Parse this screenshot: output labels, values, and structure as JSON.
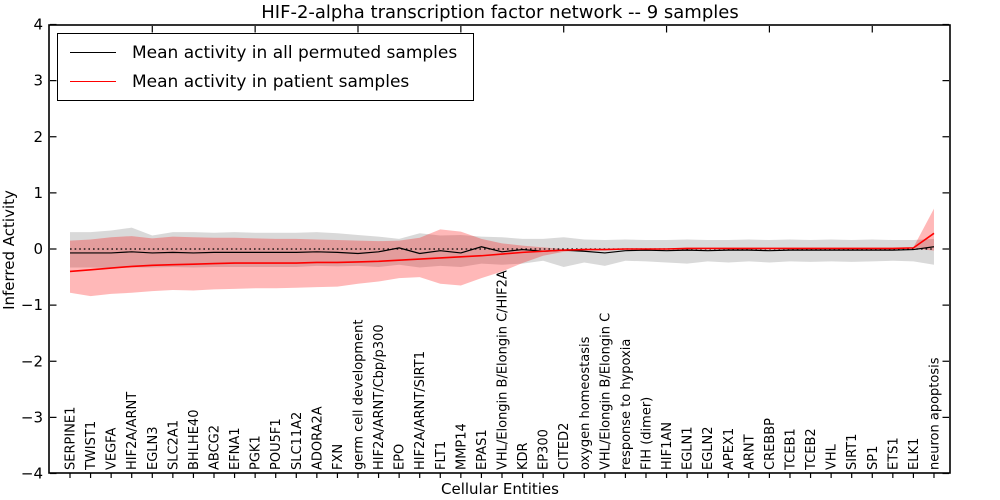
{
  "title": "HIF-2-alpha transcription factor network -- 9 samples",
  "xlabel": "Cellular Entities",
  "ylabel": "Inferred Activity",
  "legend": [
    {
      "label": "Mean activity in all permuted samples",
      "color": "#000000"
    },
    {
      "label": "Mean activity in patient samples",
      "color": "#ff0000"
    }
  ],
  "chart_data": {
    "type": "line",
    "title": "HIF-2-alpha transcription factor network -- 9 samples",
    "xlabel": "Cellular Entities",
    "ylabel": "Inferred Activity",
    "ylim": [
      -4,
      4
    ],
    "yticks": [
      4,
      3,
      2,
      1,
      0,
      -1,
      -2,
      -3,
      -4
    ],
    "grid": false,
    "legend_position": "upper left",
    "reference_line": {
      "y": 0,
      "style": "dotted",
      "color": "#000000"
    },
    "categories": [
      "SERPINE1",
      "TWIST1",
      "VEGFA",
      "HIF2A/ARNT",
      "EGLN3",
      "SLC2A1",
      "BHLHE40",
      "ABCG2",
      "EFNA1",
      "PGK1",
      "POU5F1",
      "SLC11A2",
      "ADORA2A",
      "FXN",
      "germ cell development",
      "HIF2A/ARNT/Cbp/p300",
      "EPO",
      "HIF2A/ARNT/SIRT1",
      "FLT1",
      "MMP14",
      "EPAS1",
      "VHL/Elongin B/Elongin C/HIF2A",
      "KDR",
      "EP300",
      "CITED2",
      "oxygen homeostasis",
      "VHL/Elongin B/Elongin C",
      "response to hypoxia",
      "FIH (dimer)",
      "HIF1AN",
      "EGLN1",
      "EGLN2",
      "APEX1",
      "ARNT",
      "CREBBP",
      "TCEB1",
      "TCEB2",
      "VHL",
      "SIRT1",
      "SP1",
      "ETS1",
      "ELK1",
      "neuron apoptosis"
    ],
    "series": [
      {
        "name": "Mean activity in all permuted samples",
        "color": "#000000",
        "width": 1.2,
        "values": [
          -0.07,
          -0.07,
          -0.07,
          -0.05,
          -0.07,
          -0.06,
          -0.07,
          -0.06,
          -0.06,
          -0.06,
          -0.06,
          -0.06,
          -0.05,
          -0.06,
          -0.08,
          -0.05,
          0.02,
          -0.08,
          -0.03,
          -0.07,
          0.04,
          -0.05,
          -0.01,
          -0.04,
          -0.02,
          -0.04,
          -0.07,
          -0.03,
          -0.02,
          -0.03,
          -0.02,
          -0.03,
          -0.02,
          -0.02,
          -0.03,
          -0.02,
          -0.02,
          -0.02,
          -0.02,
          -0.02,
          -0.02,
          -0.01,
          0.04
        ]
      },
      {
        "name": "Mean activity in patient samples",
        "color": "#ff0000",
        "width": 1.6,
        "values": [
          -0.4,
          -0.37,
          -0.34,
          -0.31,
          -0.29,
          -0.28,
          -0.27,
          -0.26,
          -0.25,
          -0.25,
          -0.25,
          -0.25,
          -0.24,
          -0.24,
          -0.23,
          -0.22,
          -0.2,
          -0.18,
          -0.16,
          -0.14,
          -0.12,
          -0.09,
          -0.06,
          -0.04,
          -0.02,
          -0.01,
          -0.01,
          0.0,
          0.0,
          0.0,
          0.01,
          0.01,
          0.01,
          0.01,
          0.01,
          0.01,
          0.01,
          0.01,
          0.01,
          0.01,
          0.01,
          0.02,
          0.28
        ]
      }
    ],
    "bands": [
      {
        "name": "permuted-samples-range",
        "color": "rgba(0,0,0,0.15)",
        "upper": [
          0.3,
          0.3,
          0.33,
          0.38,
          0.24,
          0.3,
          0.3,
          0.29,
          0.3,
          0.29,
          0.29,
          0.29,
          0.3,
          0.28,
          0.25,
          0.22,
          0.18,
          0.28,
          0.24,
          0.25,
          0.22,
          0.21,
          0.18,
          0.18,
          0.21,
          0.17,
          0.16,
          0.17,
          0.16,
          0.16,
          0.17,
          0.16,
          0.16,
          0.17,
          0.16,
          0.17,
          0.16,
          0.17,
          0.16,
          0.17,
          0.16,
          0.16,
          0.18
        ],
        "lower": [
          -0.33,
          -0.33,
          -0.34,
          -0.33,
          -0.33,
          -0.32,
          -0.33,
          -0.32,
          -0.32,
          -0.32,
          -0.32,
          -0.32,
          -0.3,
          -0.31,
          -0.3,
          -0.32,
          -0.28,
          -0.33,
          -0.3,
          -0.32,
          -0.26,
          -0.28,
          -0.26,
          -0.21,
          -0.32,
          -0.24,
          -0.3,
          -0.21,
          -0.22,
          -0.24,
          -0.26,
          -0.22,
          -0.24,
          -0.22,
          -0.24,
          -0.22,
          -0.23,
          -0.22,
          -0.23,
          -0.22,
          -0.21,
          -0.22,
          -0.28
        ]
      },
      {
        "name": "patient-samples-range",
        "color": "rgba(255,0,0,0.28)",
        "upper": [
          0.15,
          0.17,
          0.21,
          0.23,
          0.19,
          0.22,
          0.21,
          0.2,
          0.2,
          0.19,
          0.18,
          0.18,
          0.17,
          0.16,
          0.15,
          0.14,
          0.15,
          0.2,
          0.35,
          0.31,
          0.18,
          0.1,
          0.06,
          0.03,
          0.0,
          0.0,
          0.0,
          0.01,
          0.01,
          0.01,
          0.02,
          0.02,
          0.02,
          0.02,
          0.02,
          0.02,
          0.02,
          0.02,
          0.02,
          0.02,
          0.02,
          0.03,
          0.72
        ],
        "lower": [
          -0.78,
          -0.84,
          -0.8,
          -0.78,
          -0.75,
          -0.73,
          -0.74,
          -0.72,
          -0.71,
          -0.7,
          -0.7,
          -0.69,
          -0.68,
          -0.67,
          -0.62,
          -0.58,
          -0.52,
          -0.5,
          -0.62,
          -0.65,
          -0.52,
          -0.4,
          -0.25,
          -0.12,
          -0.05,
          -0.02,
          -0.02,
          -0.01,
          -0.01,
          -0.01,
          0.0,
          0.0,
          0.0,
          0.0,
          0.0,
          0.0,
          0.0,
          0.0,
          0.0,
          0.0,
          0.0,
          0.01,
          -0.03
        ]
      }
    ]
  }
}
